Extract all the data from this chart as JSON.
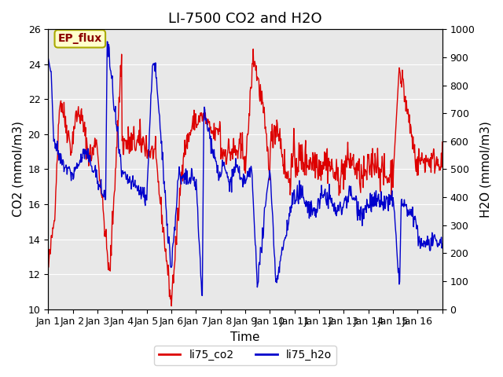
{
  "title": "LI-7500 CO2 and H2O",
  "xlabel": "Time",
  "ylabel_left": "CO2 (mmol/m3)",
  "ylabel_right": "H2O (mmol/m3)",
  "annotation": "EP_flux",
  "co2_ylim": [
    10,
    26
  ],
  "h2o_ylim": [
    0,
    1000
  ],
  "co2_color": "#dd0000",
  "h2o_color": "#0000cc",
  "background_color": "#e8e8e8",
  "figure_background": "#ffffff",
  "annotation_bg": "#ffffcc",
  "annotation_border": "#aaaa00",
  "legend_co2": "li75_co2",
  "legend_h2o": "li75_h2o",
  "title_fontsize": 13,
  "axis_fontsize": 11,
  "tick_fontsize": 9,
  "legend_fontsize": 10,
  "x_tick_positions": [
    0,
    1,
    2,
    3,
    4,
    5,
    6,
    7,
    8,
    9,
    10,
    11,
    12,
    13,
    14,
    15,
    16
  ],
  "x_tick_labels": [
    "Jan 1",
    "Jan 2",
    "Jan 3",
    "Jan 4",
    "Jan 5",
    "Jan 6",
    "Jan 7",
    "Jan 8",
    "Jan 9",
    "Jan 10",
    "Jan 11",
    "Jan 12",
    "Jan 13",
    "Jan 14",
    "Jan 15",
    "Jan 16",
    ""
  ],
  "co2_yticks": [
    10,
    12,
    14,
    16,
    18,
    20,
    22,
    24,
    26
  ],
  "h2o_yticks": [
    0,
    100,
    200,
    300,
    400,
    500,
    600,
    700,
    800,
    900,
    1000
  ],
  "n_days": 16,
  "pts_per_day": 48
}
